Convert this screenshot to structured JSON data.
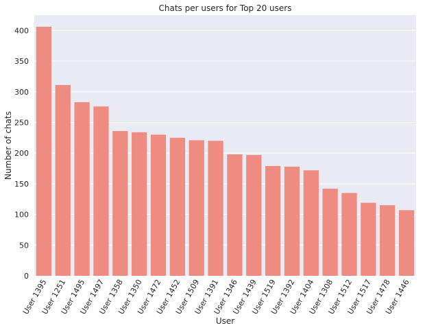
{
  "chart_data": {
    "type": "bar",
    "title": "Chats per users for Top 20 users",
    "xlabel": "User",
    "ylabel": "Number of chats",
    "categories": [
      "User 1395",
      "User 1251",
      "User 1495",
      "User 1497",
      "User 1358",
      "User 1350",
      "User 1472",
      "User 1452",
      "User 1509",
      "User 1391",
      "User 1346",
      "User 1439",
      "User 1519",
      "User 1392",
      "User 1404",
      "User 1308",
      "User 1512",
      "User 1517",
      "User 1478",
      "User 1446"
    ],
    "values": [
      406,
      311,
      283,
      276,
      236,
      234,
      230,
      225,
      221,
      220,
      198,
      197,
      179,
      178,
      172,
      142,
      135,
      119,
      115,
      107
    ],
    "ylim": [
      0,
      425
    ],
    "yticks": [
      0,
      50,
      100,
      150,
      200,
      250,
      300,
      350,
      400
    ],
    "grid": true,
    "colors": {
      "bar": "#ee8c82",
      "background": "#eaeaf2",
      "grid": "#ffffff"
    }
  }
}
